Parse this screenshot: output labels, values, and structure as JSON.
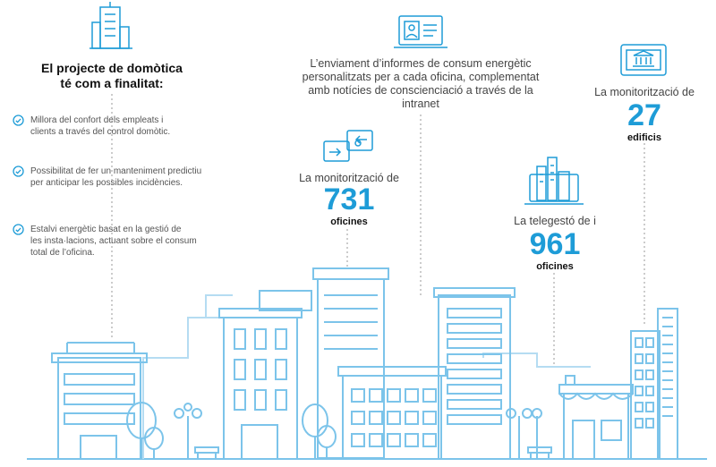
{
  "intro": {
    "heading_line1": "El projecte de domòtica",
    "heading_line2": "té com a finalitat:",
    "bullets": [
      {
        "line1": "Millora del confort dels empleats i",
        "line2": "clients a través del control domòtic."
      },
      {
        "line1": "Possibilitat de fer un manteniment predictiu",
        "line2": "per anticipar les possibles incidències."
      },
      {
        "line1": "Estalvi energètic basat en la gestió de",
        "line2": "les insta·lacions, actuant sobre el consum",
        "line3": "total de l’oficina."
      }
    ]
  },
  "reports": {
    "line1": "L’enviament d’informes de consum energètic",
    "line2": "personalitzats per a cada oficina, complementat",
    "line3": "amb notícies de conscienciació a través de la",
    "line4": "intranet"
  },
  "stat_offices": {
    "label": "La monitorització de",
    "number": "731",
    "unit": "oficines"
  },
  "stat_telemanaged": {
    "label": "La telegestó de i",
    "number": "961",
    "unit": "oficines"
  },
  "stat_buildings": {
    "label": "La monitorització de",
    "number": "27",
    "unit": "edificis"
  },
  "colors": {
    "accent": "#1e9cd7",
    "line": "#7cc4ea",
    "text": "#3a3a3a"
  },
  "icons": [
    "building-icon",
    "monitor-report-icon",
    "switch-arrows-icon",
    "city-laptop-icon",
    "bank-tablet-icon",
    "check-circle-icon"
  ]
}
